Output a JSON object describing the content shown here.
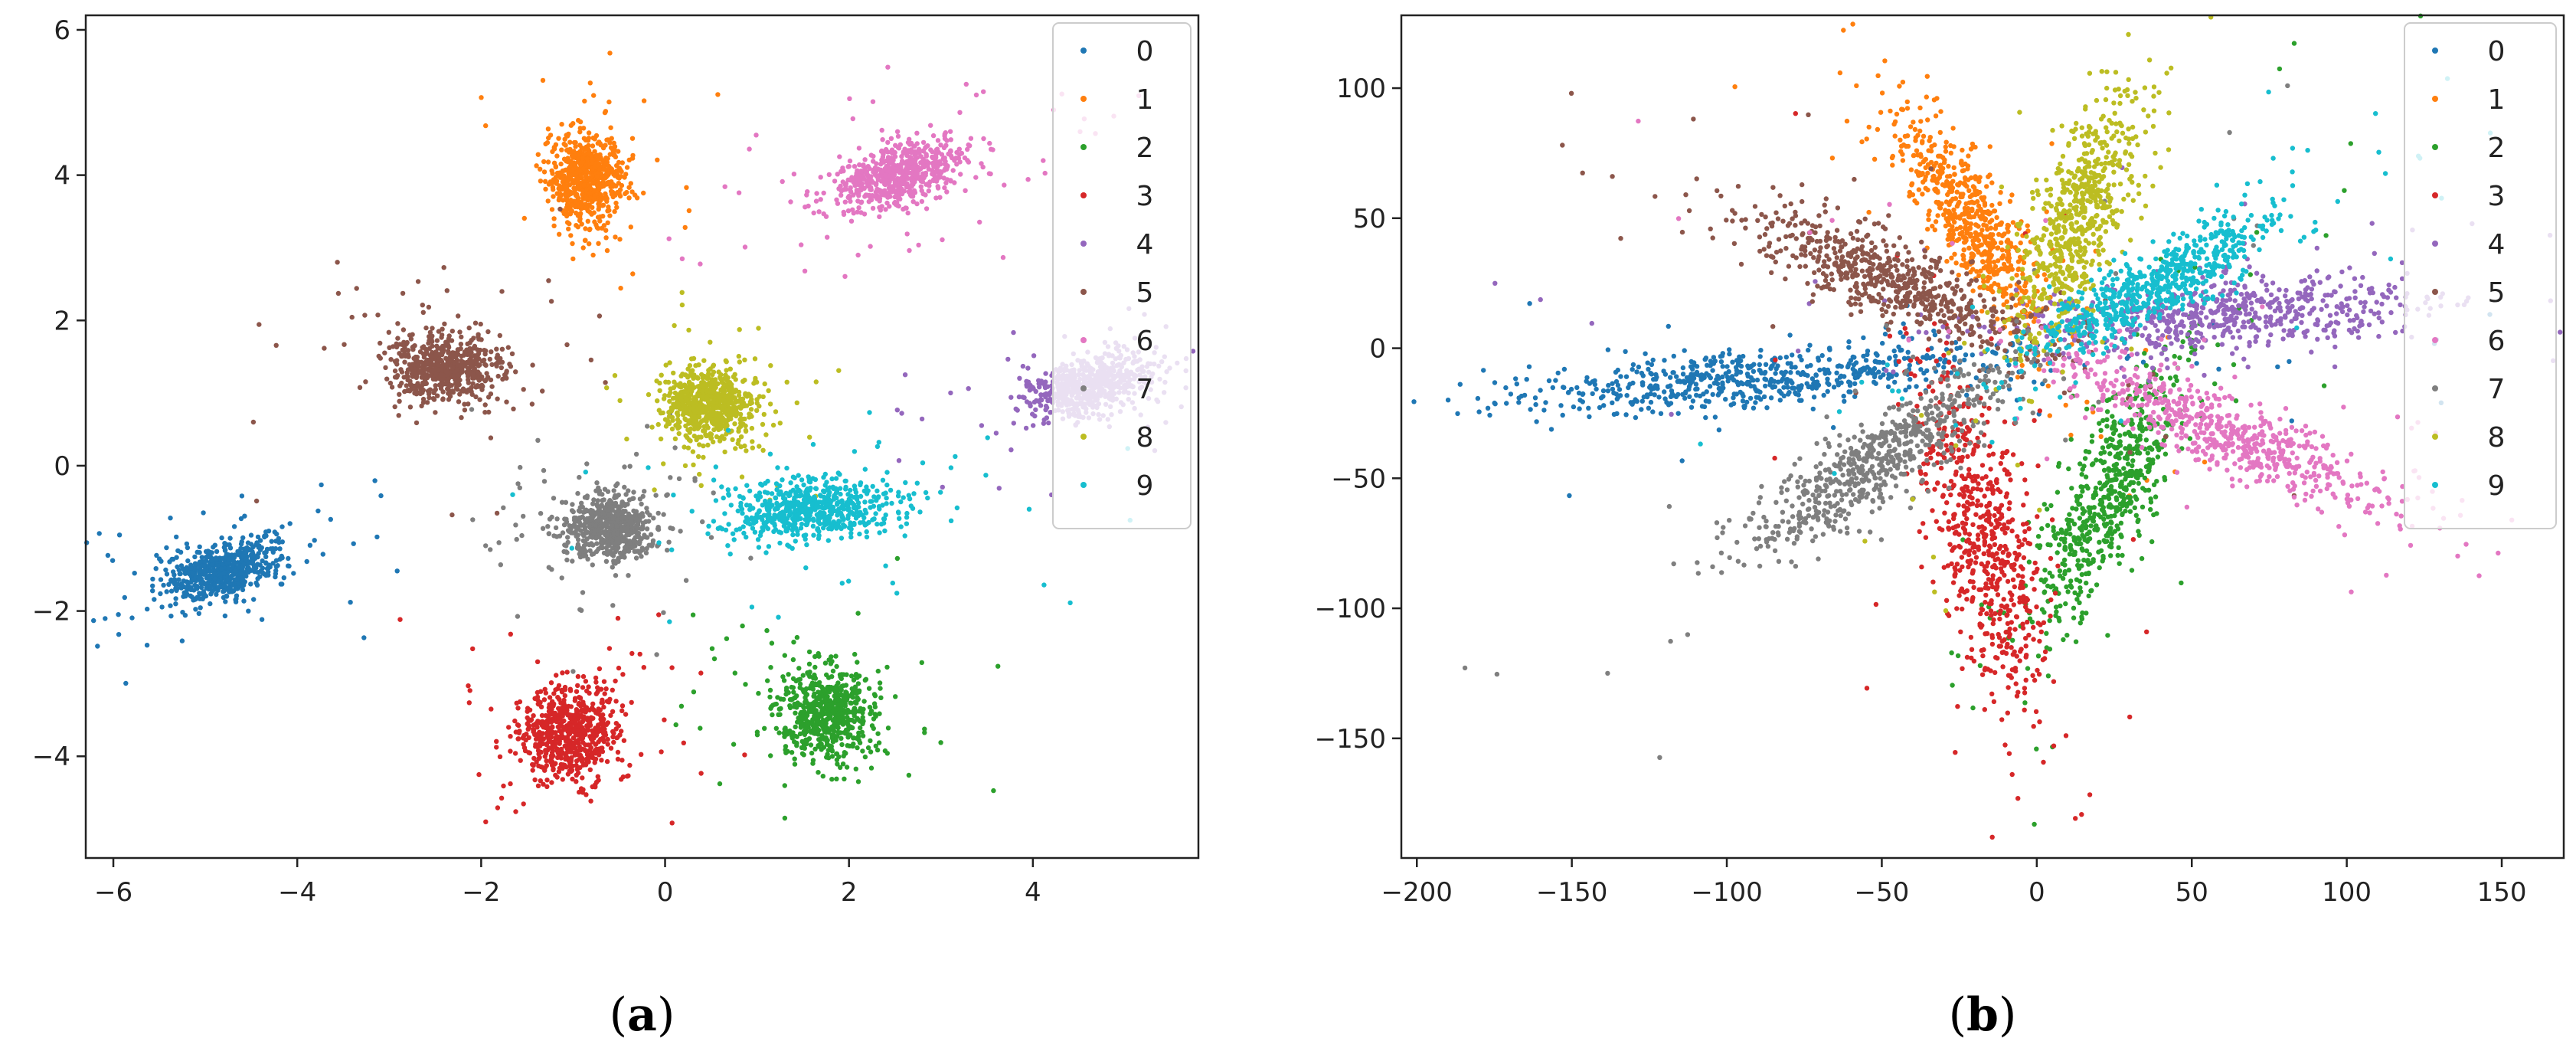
{
  "colors": {
    "palette": [
      "#1f77b4",
      "#ff7f0e",
      "#2ca02c",
      "#d62728",
      "#9467bd",
      "#8c564b",
      "#e377c2",
      "#7f7f7f",
      "#bcbd22",
      "#17becf"
    ]
  },
  "chart_data": [
    {
      "type": "scatter",
      "panel_caption": "(a)",
      "panel_letter": "a",
      "xlim": [
        -6.3,
        5.8
      ],
      "ylim": [
        -5.4,
        6.2
      ],
      "xticks": [
        -6,
        -4,
        -2,
        0,
        2,
        4
      ],
      "xtick_labels": [
        "−6",
        "−4",
        "−2",
        "0",
        "2",
        "4"
      ],
      "yticks": [
        -4,
        -2,
        0,
        2,
        4,
        6
      ],
      "ytick_labels": [
        "−4",
        "−2",
        "0",
        "2",
        "4",
        "6"
      ],
      "grid": false,
      "legend_position": "top-right",
      "series": [
        {
          "name": "0",
          "center": [
            -4.8,
            -1.45
          ],
          "spread": [
            0.32,
            0.18
          ],
          "angle_deg": 20
        },
        {
          "name": "1",
          "center": [
            -0.85,
            3.95
          ],
          "spread": [
            0.2,
            0.32
          ],
          "angle_deg": 0
        },
        {
          "name": "2",
          "center": [
            1.75,
            -3.4
          ],
          "spread": [
            0.25,
            0.3
          ],
          "angle_deg": 0
        },
        {
          "name": "3",
          "center": [
            -1.05,
            -3.7
          ],
          "spread": [
            0.27,
            0.33
          ],
          "angle_deg": 0
        },
        {
          "name": "4",
          "center": [
            4.6,
            1.1
          ],
          "spread": [
            0.35,
            0.18
          ],
          "angle_deg": 20
        },
        {
          "name": "5",
          "center": [
            -2.4,
            1.35
          ],
          "spread": [
            0.3,
            0.22
          ],
          "angle_deg": 0
        },
        {
          "name": "6",
          "center": [
            2.55,
            4.0
          ],
          "spread": [
            0.38,
            0.2
          ],
          "angle_deg": 25
        },
        {
          "name": "7",
          "center": [
            -0.6,
            -0.85
          ],
          "spread": [
            0.25,
            0.22
          ],
          "angle_deg": 0
        },
        {
          "name": "8",
          "center": [
            0.5,
            0.85
          ],
          "spread": [
            0.25,
            0.25
          ],
          "angle_deg": 0
        },
        {
          "name": "9",
          "center": [
            1.6,
            -0.6
          ],
          "spread": [
            0.42,
            0.2
          ],
          "angle_deg": 5
        }
      ]
    },
    {
      "type": "scatter",
      "panel_caption": "(b)",
      "panel_letter": "b",
      "xlim": [
        -205,
        170
      ],
      "ylim": [
        -196,
        128
      ],
      "xticks": [
        -200,
        -150,
        -100,
        -50,
        0,
        50,
        100,
        150
      ],
      "xtick_labels": [
        "−200",
        "−150",
        "−100",
        "−50",
        "0",
        "50",
        "100",
        "150"
      ],
      "yticks": [
        -150,
        -100,
        -50,
        0,
        50,
        100
      ],
      "ytick_labels": [
        "−150",
        "−100",
        "−50",
        "0",
        "50",
        "100"
      ],
      "grid": false,
      "legend_position": "top-right",
      "series": [
        {
          "name": "0",
          "center": [
            -90,
            -12
          ],
          "spread": [
            42,
            5.5
          ],
          "angle_deg": 5
        },
        {
          "name": "1",
          "center": [
            -21,
            48
          ],
          "spread": [
            23,
            6
          ],
          "angle_deg": -62
        },
        {
          "name": "2",
          "center": [
            23,
            -57
          ],
          "spread": [
            26,
            7
          ],
          "angle_deg": 68
        },
        {
          "name": "3",
          "center": [
            -17,
            -73
          ],
          "spread": [
            33,
            7.5
          ],
          "angle_deg": -78
        },
        {
          "name": "4",
          "center": [
            60,
            13
          ],
          "spread": [
            32,
            7
          ],
          "angle_deg": 5
        },
        {
          "name": "5",
          "center": [
            -48,
            27
          ],
          "spread": [
            26,
            6.5
          ],
          "angle_deg": -27
        },
        {
          "name": "6",
          "center": [
            60,
            -32
          ],
          "spread": [
            32,
            6.5
          ],
          "angle_deg": -28
        },
        {
          "name": "7",
          "center": [
            -50,
            -42
          ],
          "spread": [
            27,
            7
          ],
          "angle_deg": 40
        },
        {
          "name": "8",
          "center": [
            13,
            50
          ],
          "spread": [
            24,
            6.5
          ],
          "angle_deg": 73
        },
        {
          "name": "9",
          "center": [
            38,
            24
          ],
          "spread": [
            23,
            6
          ],
          "angle_deg": 33
        }
      ]
    }
  ]
}
